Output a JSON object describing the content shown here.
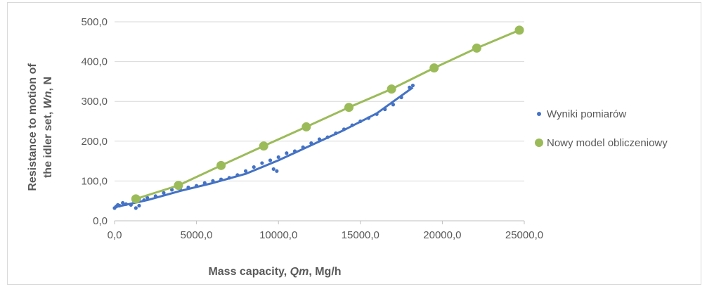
{
  "chart_data": {
    "type": "scatter",
    "xlabel_parts": [
      "Mass capacity, ",
      "Qm",
      ", Mg/h"
    ],
    "ylabel_line1": "Resistance to motion of",
    "ylabel_line2_parts": [
      "the idler set, ",
      "Wn",
      ", N"
    ],
    "xlim": [
      0,
      25000
    ],
    "ylim": [
      0,
      500
    ],
    "x_ticks": [
      0,
      5000,
      10000,
      15000,
      20000,
      25000
    ],
    "y_ticks": [
      0,
      100,
      200,
      300,
      400,
      500
    ],
    "x_tick_labels": [
      "0,0",
      "5000,0",
      "10000,0",
      "15000,0",
      "20000,0",
      "25000,0"
    ],
    "y_tick_labels": [
      "0,0",
      "100,0",
      "200,0",
      "300,0",
      "400,0",
      "500,0"
    ],
    "grid": "horizontal",
    "legend_position": "right",
    "colors": {
      "measured": "#4472c4",
      "model": "#9bbb59",
      "grid": "#d9d9d9",
      "axis": "#bfbfbf"
    },
    "series": [
      {
        "name": "Wyniki pomiarów",
        "style": "dots-with-trendline",
        "x": [
          0,
          100,
          200,
          300,
          500,
          700,
          1000,
          1200,
          1500,
          1800,
          2000,
          2500,
          3000,
          3500,
          3800,
          4000,
          4500,
          5000,
          5500,
          6000,
          6500,
          7000,
          7500,
          8000,
          8500,
          9000,
          9500,
          10000,
          10500,
          11000,
          11500,
          12000,
          12500,
          13000,
          13500,
          14000,
          14500,
          15000,
          15500,
          16000,
          16500,
          17000,
          17500,
          18000,
          18200,
          9700,
          9900,
          1300,
          1500,
          3900
        ],
        "y": [
          32,
          36,
          40,
          38,
          45,
          42,
          40,
          48,
          55,
          52,
          58,
          62,
          70,
          78,
          85,
          80,
          84,
          88,
          95,
          100,
          104,
          108,
          115,
          125,
          135,
          145,
          152,
          160,
          170,
          175,
          185,
          195,
          205,
          210,
          220,
          230,
          240,
          250,
          258,
          268,
          280,
          292,
          310,
          335,
          340,
          130,
          125,
          32,
          38,
          90
        ],
        "trend_x": [
          0,
          2000,
          4000,
          6000,
          8000,
          10000,
          12000,
          14000,
          16000,
          18200
        ],
        "trend_y": [
          34,
          52,
          75,
          95,
          118,
          152,
          190,
          228,
          270,
          335
        ]
      },
      {
        "name": "Nowy model obliczeniowy",
        "style": "line-with-markers",
        "x": [
          1300,
          3900,
          6500,
          9100,
          11700,
          14300,
          16900,
          19500,
          22100,
          24700
        ],
        "y": [
          55,
          89,
          139,
          188,
          236,
          285,
          331,
          384,
          434,
          479
        ]
      }
    ]
  }
}
